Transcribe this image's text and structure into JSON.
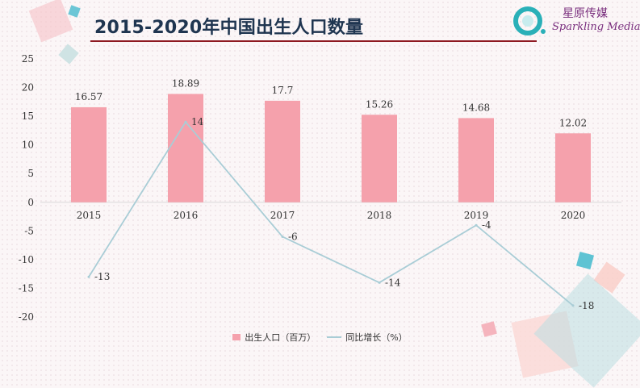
{
  "header": {
    "title": "2015-2020年中国出生人口数量",
    "brand_name": "星原传媒",
    "brand_sub": "Sparkling Media"
  },
  "colors": {
    "bar": "#f5a1ac",
    "line": "#a9cdd6",
    "title": "#1f3550",
    "rule": "#8e1a22",
    "brand": "#7a2f7e",
    "brand_icon": "#2ab0b8"
  },
  "legend": {
    "bar_label": "出生人口（百万）",
    "line_label": "同比增长（%）"
  },
  "chart_data": {
    "type": "bar",
    "title": "2015-2020年中国出生人口数量",
    "categories": [
      "2015",
      "2016",
      "2017",
      "2018",
      "2019",
      "2020"
    ],
    "series": [
      {
        "name": "出生人口（百万）",
        "type": "bar",
        "values": [
          16.57,
          18.89,
          17.7,
          15.26,
          14.68,
          12.02
        ]
      },
      {
        "name": "同比增长（%）",
        "type": "line",
        "values": [
          -13,
          14,
          -6,
          -14,
          -4,
          -18
        ]
      }
    ],
    "ylim": [
      -20,
      25
    ],
    "yticks": [
      "25",
      "20",
      "15",
      "10",
      "5",
      "0",
      "-5",
      "-10",
      "-15",
      "-20"
    ],
    "bar_labels": [
      "16.57",
      "18.89",
      "17.7",
      "15.26",
      "14.68",
      "12.02"
    ],
    "line_labels": [
      "-13",
      "14",
      "-6",
      "-14",
      "-4",
      "-18"
    ],
    "grid": false,
    "legend_position": "bottom"
  }
}
